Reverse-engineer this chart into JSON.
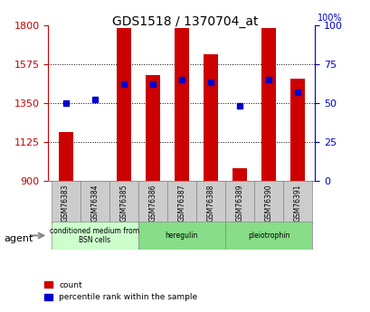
{
  "title": "GDS1518 / 1370704_at",
  "samples": [
    "GSM76383",
    "GSM76384",
    "GSM76385",
    "GSM76386",
    "GSM76387",
    "GSM76388",
    "GSM76389",
    "GSM76390",
    "GSM76391"
  ],
  "count_values": [
    1180,
    900,
    1780,
    1510,
    1780,
    1630,
    975,
    1780,
    1490
  ],
  "percentile_values": [
    50,
    52,
    62,
    62,
    65,
    63,
    48,
    65,
    57
  ],
  "y_min": 900,
  "y_max": 1800,
  "y_ticks": [
    900,
    1125,
    1350,
    1575,
    1800
  ],
  "y2_ticks": [
    0,
    25,
    50,
    75,
    100
  ],
  "bar_color": "#cc0000",
  "percentile_color": "#0000cc",
  "groups": [
    {
      "label": "conditioned medium from\nBSN cells",
      "start": 0,
      "end": 3,
      "color": "#ccffcc"
    },
    {
      "label": "heregulin",
      "start": 3,
      "end": 6,
      "color": "#66dd66"
    },
    {
      "label": "pleiotrophin",
      "start": 6,
      "end": 9,
      "color": "#66dd66"
    }
  ],
  "agent_label": "agent",
  "legend_count_label": "count",
  "legend_percentile_label": "percentile rank within the sample",
  "background_color": "#ffffff",
  "plot_bg_color": "#ffffff",
  "grid_color": "#000000",
  "axis_color_left": "#cc0000",
  "axis_color_right": "#0000cc"
}
